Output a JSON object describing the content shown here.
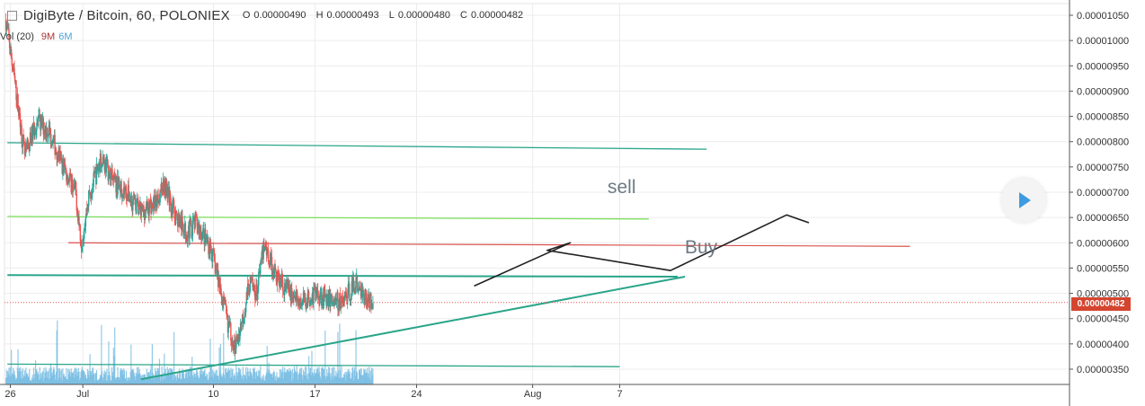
{
  "header": {
    "title": "DigiByte / Bitcoin, 60, POLONIEX",
    "ohlc": [
      {
        "label": "O",
        "value": "0.00000490"
      },
      {
        "label": "H",
        "value": "0.00000493"
      },
      {
        "label": "L",
        "value": "0.00000480"
      },
      {
        "label": "C",
        "value": "0.00000482"
      }
    ]
  },
  "volume": {
    "label": "Vol (20)",
    "val1": "9M",
    "val2": "6M"
  },
  "annotations": {
    "sell": "sell",
    "buy": "Buy"
  },
  "current_price": "0.00000482",
  "colors": {
    "up": "#26a69a",
    "down": "#ef5350",
    "volume": "#6fb8e0",
    "teal": "#2aa58a",
    "green": "#7be05a",
    "red": "#d9534f",
    "badge": "#d44530",
    "annotation": "#6d7a86"
  },
  "chart_data": {
    "type": "candlestick",
    "y_ticks": [
      "0.00001050",
      "0.00001000",
      "0.00000950",
      "0.00000900",
      "0.00000850",
      "0.00000800",
      "0.00000750",
      "0.00000700",
      "0.00000650",
      "0.00000600",
      "0.00000550",
      "0.00000500",
      "0.00000450",
      "0.00000400",
      "0.00000350"
    ],
    "ylim": [
      3.3e-06,
      1.065e-05
    ],
    "x_ticks": [
      {
        "label": "26",
        "day": 26
      },
      {
        "label": "Jul",
        "day": 31
      },
      {
        "label": "10",
        "day": 40
      },
      {
        "label": "17",
        "day": 47
      },
      {
        "label": "24",
        "day": 54
      },
      {
        "label": "Aug",
        "day": 62
      },
      {
        "label": "7",
        "day": 68
      }
    ],
    "x_note": "x values are days counted from June 1 (Jun 26 = 26, Jul 1 = 31)",
    "xlim": [
      25.6,
      99.0
    ],
    "price_path": [
      [
        25.7,
        1.04e-05
      ],
      [
        26.3,
        9.2e-06
      ],
      [
        27.0,
        7.7e-06
      ],
      [
        27.8,
        8.4e-06
      ],
      [
        28.7,
        8.2e-06
      ],
      [
        29.5,
        7.6e-06
      ],
      [
        30.5,
        7e-06
      ],
      [
        30.9,
        6e-06
      ],
      [
        31.4,
        6.9e-06
      ],
      [
        32.3,
        7.7e-06
      ],
      [
        33.1,
        7.2e-06
      ],
      [
        34.0,
        7e-06
      ],
      [
        35.0,
        6.6e-06
      ],
      [
        36.0,
        6.8e-06
      ],
      [
        36.6,
        7.2e-06
      ],
      [
        37.3,
        6.6e-06
      ],
      [
        38.1,
        6.2e-06
      ],
      [
        38.8,
        6.4e-06
      ],
      [
        39.8,
        5.9e-06
      ],
      [
        40.4,
        5.2e-06
      ],
      [
        41.0,
        4.4e-06
      ],
      [
        41.5,
        3.9e-06
      ],
      [
        42.0,
        4.5e-06
      ],
      [
        42.5,
        5.2e-06
      ],
      [
        43.0,
        5e-06
      ],
      [
        43.5,
        6e-06
      ],
      [
        44.2,
        5.4e-06
      ],
      [
        45.0,
        5.1e-06
      ],
      [
        46.0,
        4.8e-06
      ],
      [
        47.0,
        5e-06
      ],
      [
        48.0,
        4.9e-06
      ],
      [
        48.8,
        4.8e-06
      ],
      [
        49.8,
        5.2e-06
      ],
      [
        50.5,
        4.9e-06
      ],
      [
        51.0,
        4.82e-06
      ]
    ],
    "lines": [
      {
        "name": "upper-resistance",
        "color": "teal",
        "points": [
          [
            25.8,
            7.98e-06
          ],
          [
            74.0,
            7.85e-06
          ]
        ],
        "width": 1.3
      },
      {
        "name": "green-level",
        "color": "green",
        "points": [
          [
            25.8,
            6.52e-06
          ],
          [
            70.0,
            6.47e-06
          ]
        ],
        "width": 1.3
      },
      {
        "name": "red-level",
        "color": "red",
        "points": [
          [
            30.0,
            6e-06
          ],
          [
            88.0,
            5.93e-06
          ]
        ],
        "width": 1.2
      },
      {
        "name": "teal-support",
        "color": "teal",
        "points": [
          [
            25.8,
            5.36e-06
          ],
          [
            72.0,
            5.33e-06
          ]
        ],
        "width": 2.0
      },
      {
        "name": "low-level",
        "color": "teal",
        "points": [
          [
            25.8,
            3.6e-06
          ],
          [
            68.0,
            3.55e-06
          ]
        ],
        "width": 1.3
      },
      {
        "name": "rising-trendline",
        "color": "teal",
        "points": [
          [
            35.0,
            3.3e-06
          ],
          [
            72.5,
            5.33e-06
          ]
        ],
        "width": 2.0
      }
    ],
    "current_price_value": 4.82e-06,
    "sketch_path": [
      [
        58.0,
        5.15e-06
      ],
      [
        64.6,
        6e-06
      ],
      [
        63.0,
        5.85e-06
      ],
      [
        71.5,
        5.45e-06
      ],
      [
        79.5,
        6.55e-06
      ],
      [
        81.0,
        6.4e-06
      ]
    ]
  }
}
